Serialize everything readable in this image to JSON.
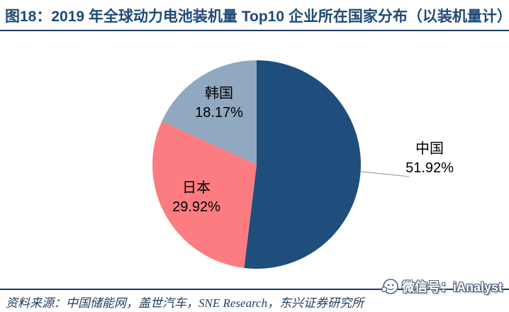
{
  "header": {
    "title": "图18：2019 年全球动力电池装机量 Top10 企业所在国家分布（以装机量计）"
  },
  "chart_data": {
    "type": "pie",
    "title": "2019 年全球动力电池装机量 Top10 企业所在国家分布（以装机量计）",
    "start_angle_deg": 0,
    "direction": "clockwise",
    "legend": "none",
    "label_style": "category name + percentage; 日本/韩国 inside slice, 中国 outside right with gray leader line",
    "leader_line_color": "#A6A6A6",
    "slices": [
      {
        "name": "china",
        "label": "中国",
        "value": 51.92,
        "pct_label": "51.92%",
        "color": "#1F4E7C",
        "label_placement": "outside-right"
      },
      {
        "name": "japan",
        "label": "日本",
        "value": 29.92,
        "pct_label": "29.92%",
        "color": "#FB7D81",
        "label_placement": "inside"
      },
      {
        "name": "korea",
        "label": "韩国",
        "value": 18.17,
        "pct_label": "18.17%",
        "color": "#90A8C0",
        "label_placement": "inside"
      }
    ]
  },
  "footer": {
    "source": "资料来源：中国储能网，盖世汽车，SNE Research，东兴证券研究所",
    "watermark": {
      "icon": "wechat-icon",
      "text": "微信号：iAnalyst"
    }
  },
  "colors": {
    "title_text": "#1F4977",
    "rule": "#1F3B63",
    "source_text": "#24405F",
    "label_text": "#000000"
  }
}
